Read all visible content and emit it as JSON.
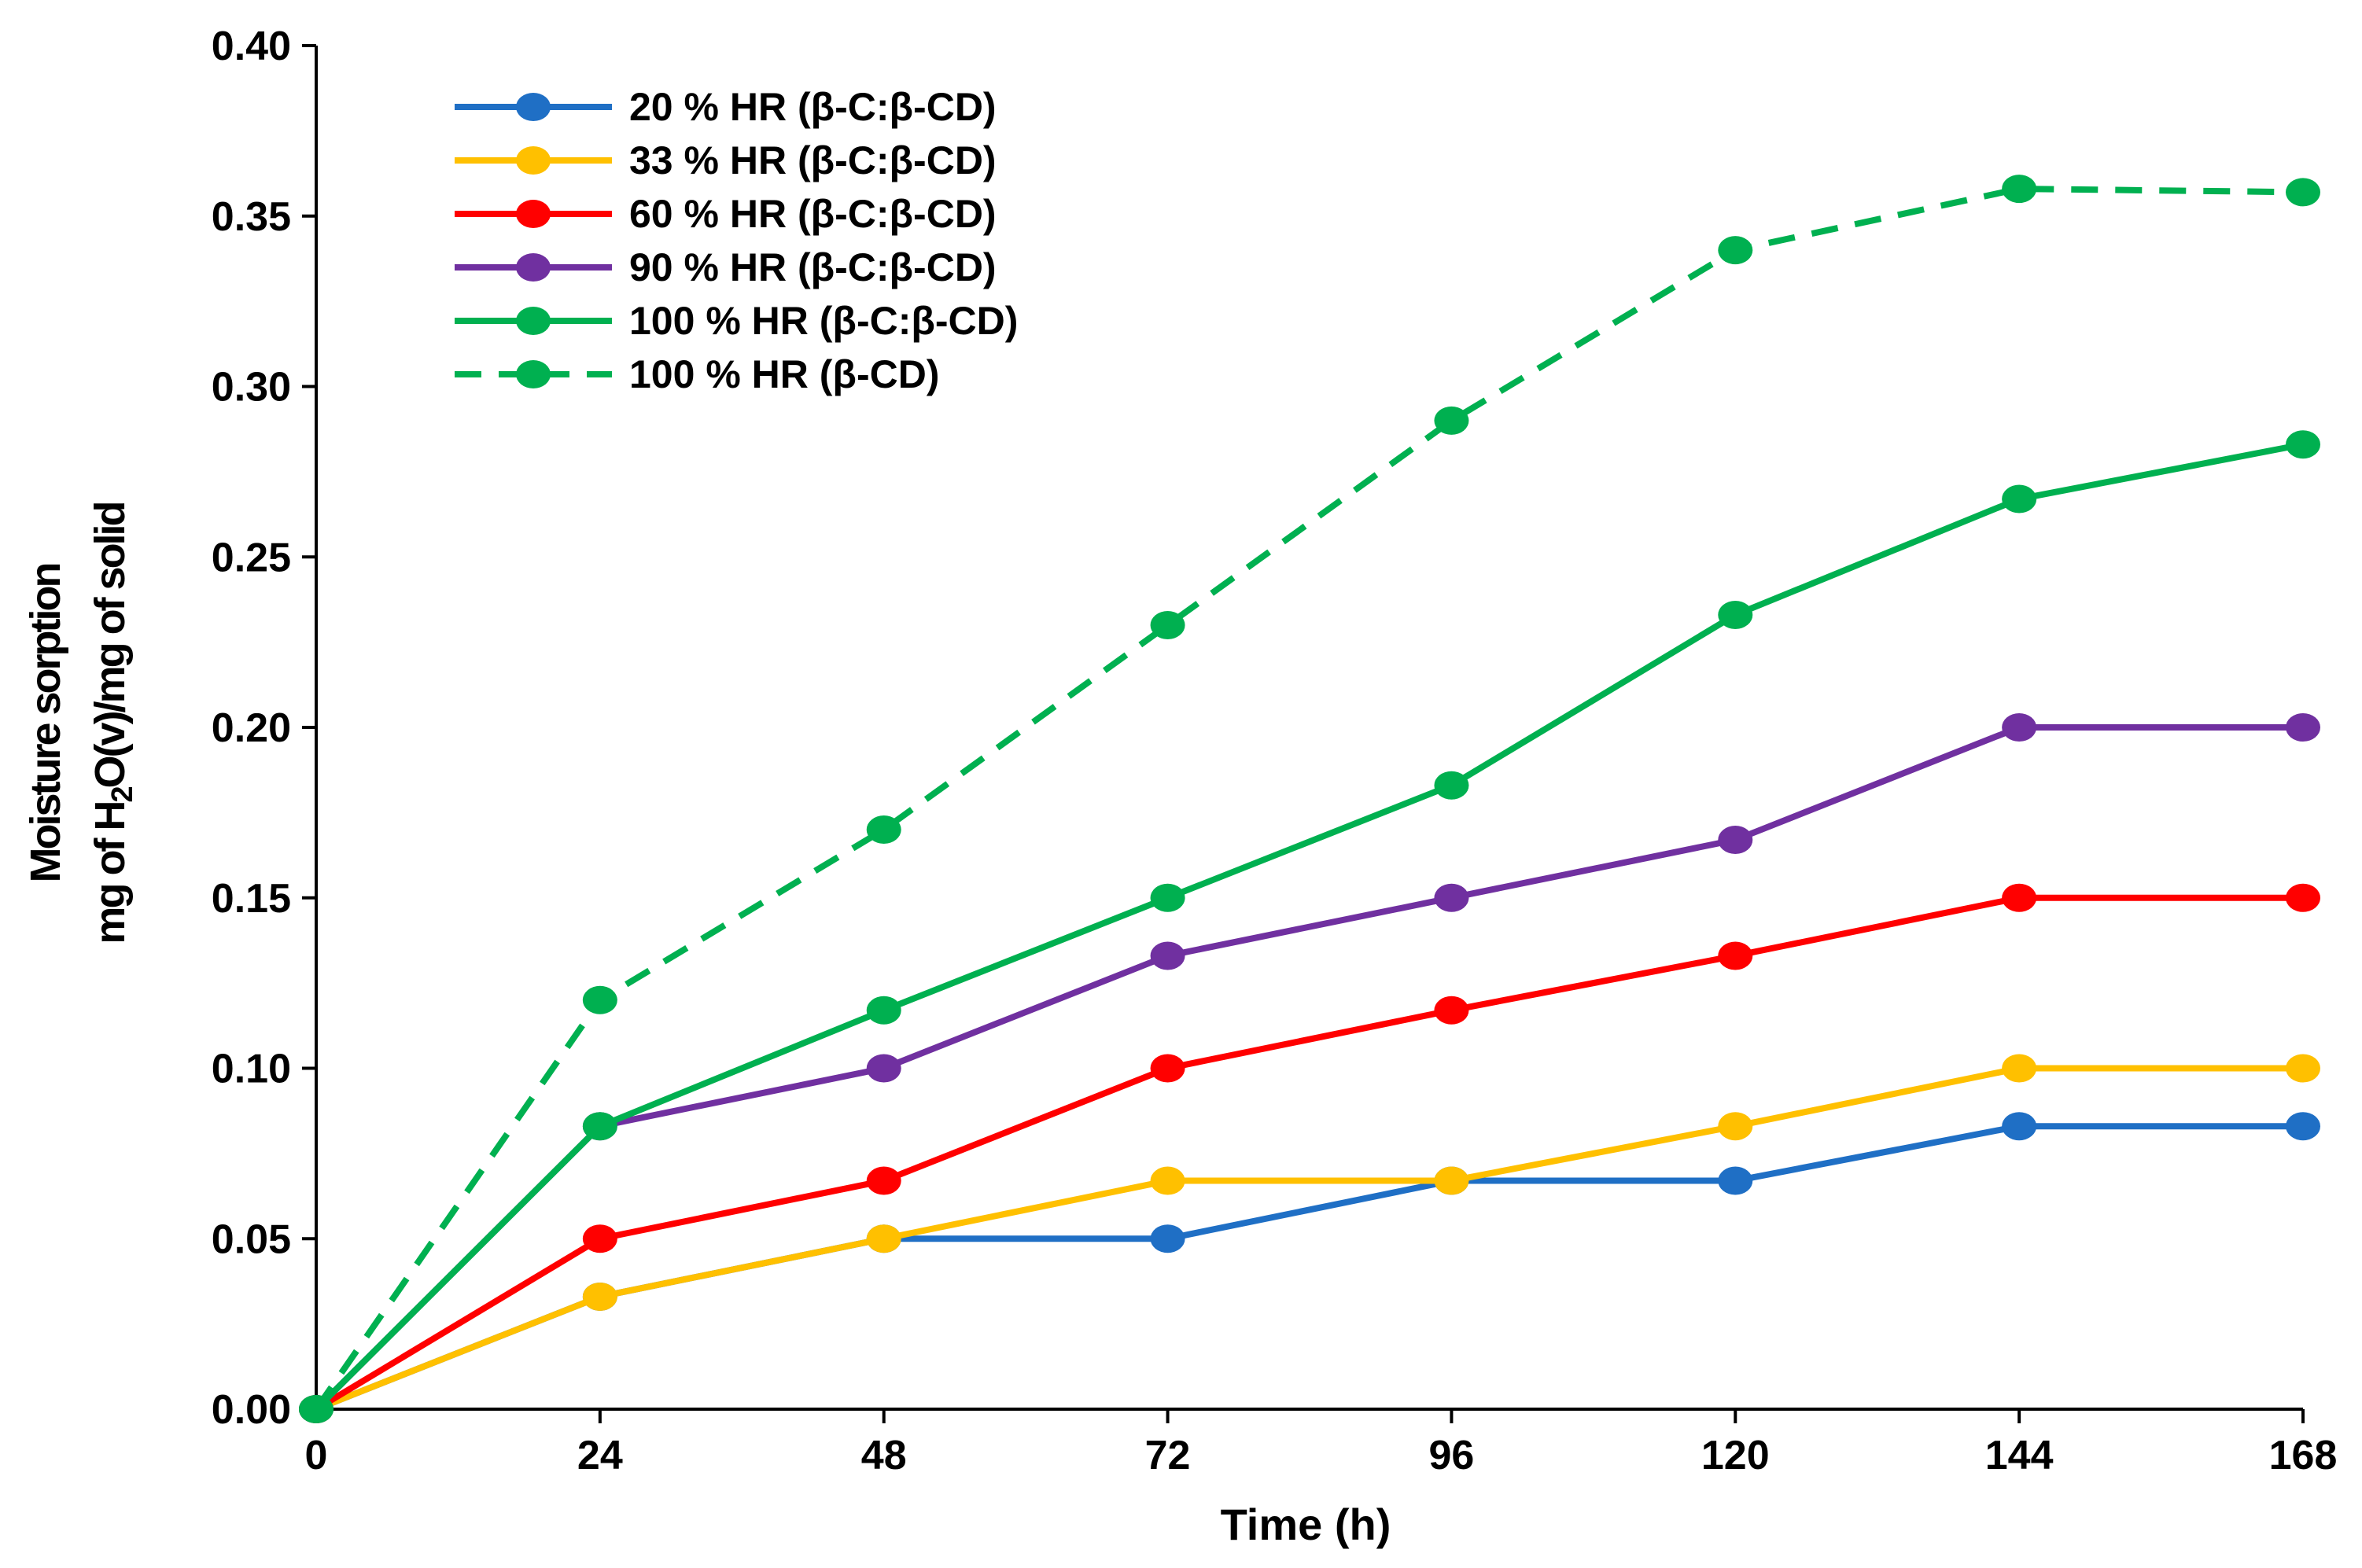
{
  "chart_data": {
    "type": "line",
    "xlabel": "Time (h)",
    "ylabel_line1": "Moisture sorption",
    "ylabel_line2_pre": "mg of H",
    "ylabel_line2_sub": "2",
    "ylabel_line2_post": "O(v)/mg of solid",
    "x": [
      0,
      24,
      48,
      72,
      96,
      120,
      144,
      168
    ],
    "x_ticks": [
      "0",
      "24",
      "48",
      "72",
      "96",
      "120",
      "144",
      "168"
    ],
    "xlim": [
      0,
      168
    ],
    "ylim": [
      0,
      0.4
    ],
    "y_ticks": [
      "0.00",
      "0.05",
      "0.10",
      "0.15",
      "0.20",
      "0.25",
      "0.30",
      "0.35",
      "0.40"
    ],
    "grid": false,
    "legend_position": "top-left",
    "series": [
      {
        "name": "20 % HR (β-C:β-CD)",
        "color": "#1f6fc5",
        "dashed": false,
        "values": [
          0.0,
          0.033,
          0.05,
          0.05,
          0.067,
          0.067,
          0.083,
          0.083
        ]
      },
      {
        "name": "33 % HR (β-C:β-CD)",
        "color": "#ffc000",
        "dashed": false,
        "values": [
          0.0,
          0.033,
          0.05,
          0.067,
          0.067,
          0.083,
          0.1,
          0.1
        ]
      },
      {
        "name": "60 % HR (β-C:β-CD)",
        "color": "#ff0000",
        "dashed": false,
        "values": [
          0.0,
          0.05,
          0.067,
          0.1,
          0.117,
          0.133,
          0.15,
          0.15
        ]
      },
      {
        "name": "90 % HR (β-C:β-CD)",
        "color": "#7030a0",
        "dashed": false,
        "values": [
          0.0,
          0.083,
          0.1,
          0.133,
          0.15,
          0.167,
          0.2,
          0.2
        ]
      },
      {
        "name": "100 % HR (β-C:β-CD)",
        "color": "#00b050",
        "dashed": false,
        "values": [
          0.0,
          0.083,
          0.117,
          0.15,
          0.183,
          0.233,
          0.267,
          0.283
        ]
      },
      {
        "name": "100 % HR (β-CD)",
        "color": "#00b050",
        "dashed": true,
        "values": [
          0.0,
          0.12,
          0.17,
          0.23,
          0.29,
          0.34,
          0.358,
          0.357
        ]
      }
    ]
  }
}
